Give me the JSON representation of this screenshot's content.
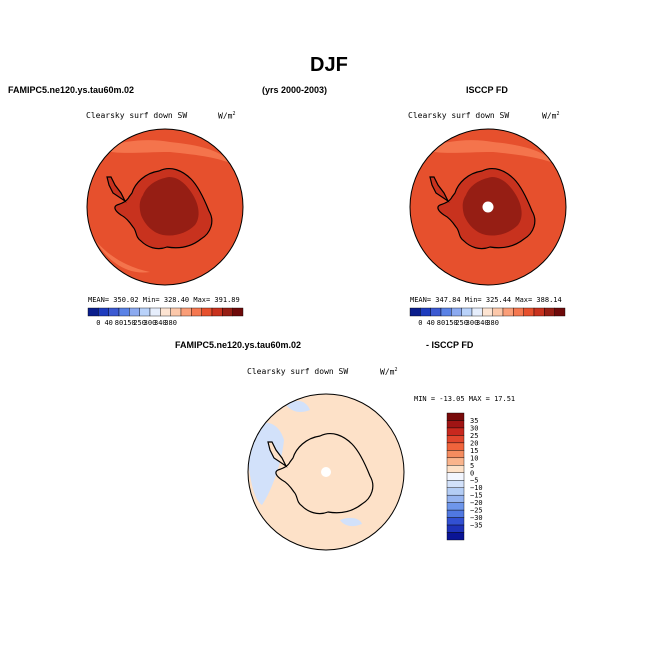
{
  "page": {
    "title": "DJF",
    "case_label": "FAMIPC5.ne120.ys.tau60m.02",
    "years_label": "(yrs 2000-2003)",
    "obs_label": "ISCCP FD",
    "diff_case_label": "FAMIPC5.ne120.ys.tau60m.02",
    "diff_obs_label": "- ISCCP FD"
  },
  "panels": [
    {
      "id": "model",
      "field_label": "Clearsky surf down SW",
      "units_base": "W/m",
      "units_exp": "2",
      "stats_text": "MEAN= 350.02  Min= 328.40  Max= 391.89"
    },
    {
      "id": "obs",
      "field_label": "Clearsky surf down SW",
      "units_base": "W/m",
      "units_exp": "2",
      "stats_text": "MEAN= 347.84  Min= 325.44  Max= 388.14"
    },
    {
      "id": "diff",
      "field_label": "Clearsky surf down SW",
      "units_base": "W/m",
      "units_exp": "2",
      "stats_text": "MIN = -13.05 MAX =  17.51"
    }
  ],
  "chart_data": [
    {
      "type": "heatmap",
      "projection": "polar-stereographic (south pole)",
      "title": "Clearsky surf down SW",
      "units": "W/m2",
      "stats": {
        "mean": 350.02,
        "min": 328.4,
        "max": 391.89
      },
      "colorbar": {
        "levels": [
          0,
          40,
          80,
          150,
          250,
          300,
          340,
          380
        ],
        "colors": [
          "#0a1e8c",
          "#1e3cbe",
          "#3c5ad2",
          "#5a82e6",
          "#8caaf0",
          "#b9d2fa",
          "#e6eefc",
          "#fde4d2",
          "#fcc8aa",
          "#fa9e78",
          "#f57850",
          "#e6502d",
          "#c8321e",
          "#961e14",
          "#6e0a0a"
        ]
      },
      "regions": {
        "ocean": 340,
        "antarctic_margin": 360,
        "antarctic_interior": 385
      }
    },
    {
      "type": "heatmap",
      "projection": "polar-stereographic (south pole)",
      "title": "Clearsky surf down SW",
      "units": "W/m2",
      "stats": {
        "mean": 347.84,
        "min": 325.44,
        "max": 388.14
      },
      "colorbar": {
        "levels": [
          0,
          40,
          80,
          150,
          250,
          300,
          340,
          380
        ],
        "colors": [
          "#0a1e8c",
          "#1e3cbe",
          "#3c5ad2",
          "#5a82e6",
          "#8caaf0",
          "#b9d2fa",
          "#e6eefc",
          "#fde4d2",
          "#fcc8aa",
          "#fa9e78",
          "#f57850",
          "#e6502d",
          "#c8321e",
          "#961e14",
          "#6e0a0a"
        ]
      },
      "regions": {
        "ocean": 340,
        "antarctic_margin": 360,
        "antarctic_interior": 385,
        "pole_missing": true
      }
    },
    {
      "type": "heatmap",
      "projection": "polar-stereographic (south pole)",
      "title": "Clearsky surf down SW (model - ISCCP FD)",
      "units": "W/m2",
      "stats": {
        "min": -13.05,
        "max": 17.51
      },
      "colorbar": {
        "orientation": "vertical",
        "levels": [
          35,
          30,
          25,
          20,
          15,
          10,
          5,
          0,
          -5,
          -10,
          -15,
          -20,
          -25,
          -30,
          -35
        ],
        "colors": [
          "#780a0a",
          "#a01414",
          "#c8281e",
          "#e1462d",
          "#f0643c",
          "#f58c5f",
          "#fab48c",
          "#fde1c8",
          "#f2f6ff",
          "#d2e1fa",
          "#b4cdf5",
          "#96b4f0",
          "#6e96eb",
          "#5078e1",
          "#3250d2",
          "#1e32b9",
          "#0a1496"
        ]
      },
      "regions": {
        "ocean": 2,
        "antarctica": 3,
        "sea_ice_zone": -2
      }
    }
  ]
}
